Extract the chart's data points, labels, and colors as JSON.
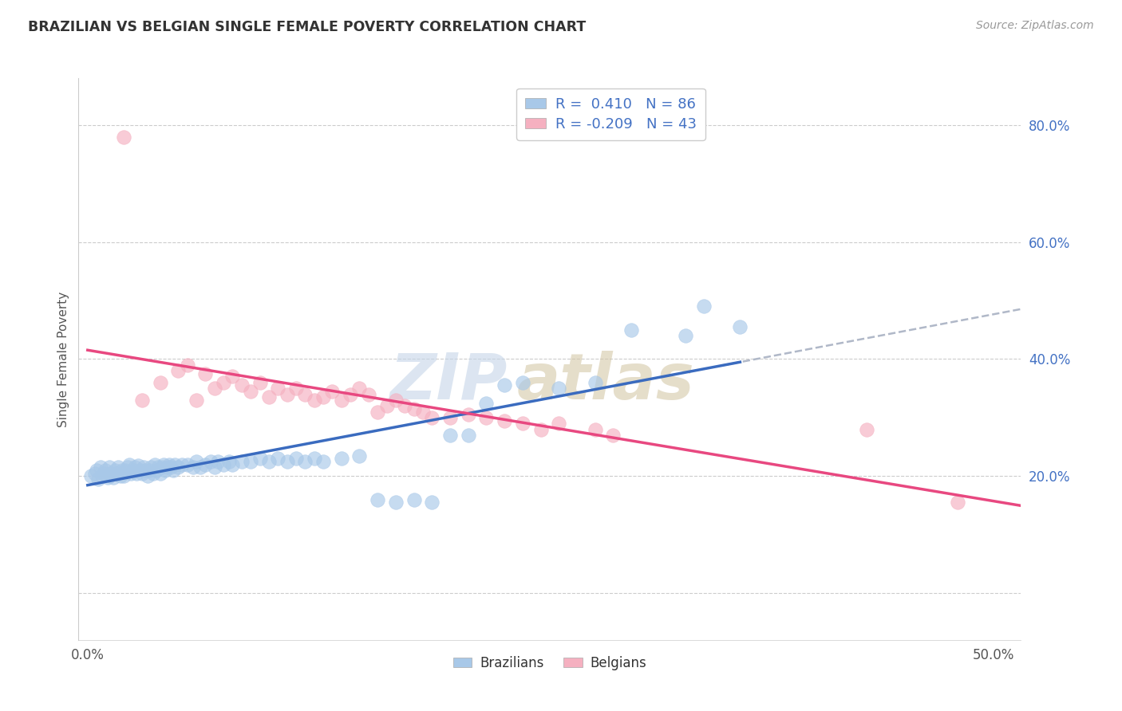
{
  "title": "BRAZILIAN VS BELGIAN SINGLE FEMALE POVERTY CORRELATION CHART",
  "source": "Source: ZipAtlas.com",
  "ylabel": "Single Female Poverty",
  "watermark_zip": "ZIP",
  "watermark_atlas": "atlas",
  "xlim": [
    -0.005,
    0.515
  ],
  "ylim": [
    -0.08,
    0.88
  ],
  "ytick_vals": [
    0.0,
    0.2,
    0.4,
    0.6,
    0.8
  ],
  "ytick_labels": [
    "",
    "20.0%",
    "40.0%",
    "60.0%",
    "80.0%"
  ],
  "xtick_vals": [
    0.0,
    0.1,
    0.2,
    0.3,
    0.4,
    0.5
  ],
  "xtick_labels": [
    "0.0%",
    "",
    "",
    "",
    "",
    "50.0%"
  ],
  "legend_r1_prefix": "R = ",
  "legend_r1_val": " 0.410",
  "legend_r1_n": "  N = 86",
  "legend_r2_prefix": "R = ",
  "legend_r2_val": "-0.209",
  "legend_r2_n": "  N = 43",
  "blue_scatter": "#a8c8e8",
  "pink_scatter": "#f5b0c0",
  "trend_blue": "#3a6bbf",
  "trend_pink": "#e84880",
  "trend_gray_dashed": "#b0b8c8",
  "grid_color": "#cccccc",
  "title_color": "#333333",
  "source_color": "#999999",
  "label_blue_color": "#4472c4",
  "brazil_x": [
    0.002,
    0.004,
    0.005,
    0.006,
    0.007,
    0.008,
    0.009,
    0.01,
    0.011,
    0.012,
    0.013,
    0.014,
    0.015,
    0.016,
    0.017,
    0.018,
    0.019,
    0.02,
    0.021,
    0.022,
    0.023,
    0.024,
    0.025,
    0.026,
    0.027,
    0.028,
    0.029,
    0.03,
    0.031,
    0.032,
    0.033,
    0.034,
    0.035,
    0.036,
    0.037,
    0.038,
    0.039,
    0.04,
    0.041,
    0.042,
    0.043,
    0.044,
    0.045,
    0.046,
    0.047,
    0.048,
    0.05,
    0.052,
    0.055,
    0.058,
    0.06,
    0.062,
    0.065,
    0.068,
    0.07,
    0.072,
    0.075,
    0.078,
    0.08,
    0.085,
    0.09,
    0.095,
    0.1,
    0.105,
    0.11,
    0.115,
    0.12,
    0.125,
    0.13,
    0.14,
    0.15,
    0.16,
    0.17,
    0.18,
    0.19,
    0.2,
    0.21,
    0.22,
    0.23,
    0.24,
    0.26,
    0.28,
    0.3,
    0.33,
    0.34,
    0.36
  ],
  "brazil_y": [
    0.2,
    0.205,
    0.21,
    0.195,
    0.215,
    0.2,
    0.205,
    0.21,
    0.198,
    0.215,
    0.205,
    0.198,
    0.21,
    0.205,
    0.215,
    0.2,
    0.21,
    0.2,
    0.21,
    0.215,
    0.22,
    0.205,
    0.21,
    0.215,
    0.205,
    0.218,
    0.21,
    0.205,
    0.215,
    0.21,
    0.2,
    0.21,
    0.215,
    0.205,
    0.22,
    0.21,
    0.215,
    0.205,
    0.215,
    0.22,
    0.21,
    0.215,
    0.22,
    0.215,
    0.21,
    0.22,
    0.215,
    0.22,
    0.22,
    0.215,
    0.225,
    0.215,
    0.22,
    0.225,
    0.215,
    0.225,
    0.22,
    0.225,
    0.22,
    0.225,
    0.225,
    0.23,
    0.225,
    0.23,
    0.225,
    0.23,
    0.225,
    0.23,
    0.225,
    0.23,
    0.235,
    0.16,
    0.155,
    0.16,
    0.155,
    0.27,
    0.27,
    0.325,
    0.355,
    0.36,
    0.35,
    0.36,
    0.45,
    0.44,
    0.49,
    0.455
  ],
  "belgium_x": [
    0.02,
    0.03,
    0.04,
    0.05,
    0.055,
    0.06,
    0.065,
    0.07,
    0.075,
    0.08,
    0.085,
    0.09,
    0.095,
    0.1,
    0.105,
    0.11,
    0.115,
    0.12,
    0.125,
    0.13,
    0.135,
    0.14,
    0.145,
    0.15,
    0.155,
    0.16,
    0.165,
    0.17,
    0.175,
    0.18,
    0.185,
    0.19,
    0.2,
    0.21,
    0.22,
    0.23,
    0.24,
    0.25,
    0.26,
    0.28,
    0.29,
    0.43,
    0.48
  ],
  "belgium_y": [
    0.78,
    0.33,
    0.36,
    0.38,
    0.39,
    0.33,
    0.375,
    0.35,
    0.36,
    0.37,
    0.355,
    0.345,
    0.36,
    0.335,
    0.35,
    0.34,
    0.35,
    0.34,
    0.33,
    0.335,
    0.345,
    0.33,
    0.34,
    0.35,
    0.34,
    0.31,
    0.32,
    0.33,
    0.32,
    0.315,
    0.31,
    0.3,
    0.3,
    0.305,
    0.3,
    0.295,
    0.29,
    0.28,
    0.29,
    0.28,
    0.27,
    0.28,
    0.155
  ]
}
